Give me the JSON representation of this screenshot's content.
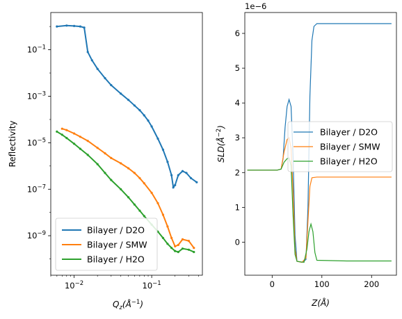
{
  "chart_data": [
    {
      "type": "line",
      "ylabel": "Reflectivity",
      "xlabel_base": "Q",
      "xlabel_sub": "z",
      "xlabel_rest": "(Å",
      "xlabel_sup": "−1",
      "xlabel_close": ")",
      "xscale": "log",
      "yscale": "log",
      "xlim": [
        0.005,
        0.45
      ],
      "ylim": [
        2e-11,
        4.0
      ],
      "x_ticks": [
        {
          "value": 0.01,
          "base": "10",
          "exp": "−2"
        },
        {
          "value": 0.1,
          "base": "10",
          "exp": "−1"
        }
      ],
      "y_ticks": [
        {
          "value": 0.1,
          "base": "10",
          "exp": "−1"
        },
        {
          "value": 0.001,
          "base": "10",
          "exp": "−3"
        },
        {
          "value": 1e-05,
          "base": "10",
          "exp": "−5"
        },
        {
          "value": 1e-07,
          "base": "10",
          "exp": "−7"
        },
        {
          "value": 1e-09,
          "base": "10",
          "exp": "−9"
        }
      ],
      "legend_position": "lower-left",
      "series": [
        {
          "name": "Bilayer / D2O",
          "color": "#1f77b4",
          "points": [
            [
              0.006,
              1.0
            ],
            [
              0.008,
              1.1
            ],
            [
              0.01,
              1.05
            ],
            [
              0.012,
              1.0
            ],
            [
              0.0135,
              0.9
            ],
            [
              0.015,
              0.08
            ],
            [
              0.017,
              0.035
            ],
            [
              0.02,
              0.015
            ],
            [
              0.025,
              0.006
            ],
            [
              0.03,
              0.003
            ],
            [
              0.04,
              0.0013
            ],
            [
              0.05,
              0.0007
            ],
            [
              0.06,
              0.0004
            ],
            [
              0.07,
              0.00025
            ],
            [
              0.08,
              0.00015
            ],
            [
              0.09,
              9e-05
            ],
            [
              0.1,
              5e-05
            ],
            [
              0.12,
              1.5e-05
            ],
            [
              0.14,
              5e-06
            ],
            [
              0.16,
              1.5e-06
            ],
            [
              0.18,
              4e-07
            ],
            [
              0.19,
              1.2e-07
            ],
            [
              0.2,
              1.5e-07
            ],
            [
              0.22,
              4e-07
            ],
            [
              0.25,
              6e-07
            ],
            [
              0.28,
              5e-07
            ],
            [
              0.32,
              3e-07
            ],
            [
              0.38,
              2e-07
            ]
          ]
        },
        {
          "name": "Bilayer / SMW",
          "color": "#ff7f0e",
          "points": [
            [
              0.007,
              4e-05
            ],
            [
              0.008,
              3.5e-05
            ],
            [
              0.01,
              2.5e-05
            ],
            [
              0.012,
              1.8e-05
            ],
            [
              0.015,
              1.2e-05
            ],
            [
              0.02,
              6e-06
            ],
            [
              0.025,
              3.5e-06
            ],
            [
              0.03,
              2.2e-06
            ],
            [
              0.04,
              1.3e-06
            ],
            [
              0.05,
              8e-07
            ],
            [
              0.06,
              5e-07
            ],
            [
              0.07,
              3e-07
            ],
            [
              0.08,
              1.8e-07
            ],
            [
              0.1,
              7e-08
            ],
            [
              0.12,
              2.5e-08
            ],
            [
              0.14,
              8e-09
            ],
            [
              0.16,
              2.5e-09
            ],
            [
              0.18,
              8e-10
            ],
            [
              0.2,
              3.5e-10
            ],
            [
              0.22,
              4e-10
            ],
            [
              0.25,
              7e-10
            ],
            [
              0.3,
              6e-10
            ],
            [
              0.35,
              3e-10
            ]
          ]
        },
        {
          "name": "Bilayer / H2O",
          "color": "#2ca02c",
          "points": [
            [
              0.006,
              3e-05
            ],
            [
              0.007,
              2.2e-05
            ],
            [
              0.008,
              1.6e-05
            ],
            [
              0.01,
              9e-06
            ],
            [
              0.012,
              5.5e-06
            ],
            [
              0.015,
              3e-06
            ],
            [
              0.02,
              1.2e-06
            ],
            [
              0.025,
              5e-07
            ],
            [
              0.03,
              2.5e-07
            ],
            [
              0.04,
              1e-07
            ],
            [
              0.05,
              4.5e-08
            ],
            [
              0.06,
              2.2e-08
            ],
            [
              0.07,
              1.2e-08
            ],
            [
              0.08,
              7e-09
            ],
            [
              0.1,
              3e-09
            ],
            [
              0.12,
              1.5e-09
            ],
            [
              0.14,
              8e-10
            ],
            [
              0.16,
              4.5e-10
            ],
            [
              0.18,
              3e-10
            ],
            [
              0.2,
              2.2e-10
            ],
            [
              0.22,
              2e-10
            ],
            [
              0.25,
              2.8e-10
            ],
            [
              0.3,
              2.5e-10
            ],
            [
              0.35,
              2e-10
            ]
          ]
        }
      ]
    },
    {
      "type": "line",
      "ylabel_main": "SLD",
      "ylabel_rest": "(Å",
      "ylabel_sup": "−2",
      "ylabel_close": ")",
      "xlabel_main": "Z",
      "xlabel_rest": "(Å)",
      "offset_text_base": "1e",
      "offset_text_exp": "−6",
      "xlim": [
        -55,
        250
      ],
      "ylim": [
        -0.95,
        6.6
      ],
      "x_ticks": [
        0,
        100,
        200
      ],
      "y_ticks": [
        0,
        1,
        2,
        3,
        4,
        5,
        6
      ],
      "legend_position": "center-right",
      "series": [
        {
          "name": "Bilayer / D2O",
          "color": "#1f77b4",
          "points": [
            [
              -50,
              2.07
            ],
            [
              10,
              2.07
            ],
            [
              18,
              2.1
            ],
            [
              22,
              2.4
            ],
            [
              26,
              3.3
            ],
            [
              30,
              3.9
            ],
            [
              34,
              4.1
            ],
            [
              38,
              3.9
            ],
            [
              42,
              2.5
            ],
            [
              46,
              0.2
            ],
            [
              50,
              -0.55
            ],
            [
              60,
              -0.58
            ],
            [
              68,
              -0.5
            ],
            [
              72,
              1.0
            ],
            [
              76,
              4.2
            ],
            [
              80,
              5.8
            ],
            [
              84,
              6.2
            ],
            [
              90,
              6.28
            ],
            [
              150,
              6.28
            ],
            [
              240,
              6.28
            ]
          ]
        },
        {
          "name": "Bilayer / SMW",
          "color": "#ff7f0e",
          "points": [
            [
              -50,
              2.07
            ],
            [
              10,
              2.07
            ],
            [
              18,
              2.1
            ],
            [
              24,
              2.6
            ],
            [
              30,
              2.95
            ],
            [
              34,
              3.0
            ],
            [
              38,
              2.7
            ],
            [
              42,
              1.5
            ],
            [
              46,
              -0.2
            ],
            [
              50,
              -0.55
            ],
            [
              60,
              -0.58
            ],
            [
              68,
              -0.45
            ],
            [
              72,
              0.6
            ],
            [
              76,
              1.6
            ],
            [
              80,
              1.85
            ],
            [
              90,
              1.87
            ],
            [
              150,
              1.87
            ],
            [
              240,
              1.87
            ]
          ]
        },
        {
          "name": "Bilayer / H2O",
          "color": "#2ca02c",
          "points": [
            [
              -50,
              2.07
            ],
            [
              10,
              2.07
            ],
            [
              18,
              2.1
            ],
            [
              24,
              2.3
            ],
            [
              30,
              2.4
            ],
            [
              34,
              2.42
            ],
            [
              38,
              2.2
            ],
            [
              42,
              0.8
            ],
            [
              46,
              -0.35
            ],
            [
              50,
              -0.55
            ],
            [
              64,
              -0.58
            ],
            [
              70,
              -0.2
            ],
            [
              74,
              0.3
            ],
            [
              78,
              0.52
            ],
            [
              82,
              0.3
            ],
            [
              86,
              -0.3
            ],
            [
              90,
              -0.52
            ],
            [
              150,
              -0.54
            ],
            [
              240,
              -0.54
            ]
          ]
        }
      ]
    }
  ]
}
